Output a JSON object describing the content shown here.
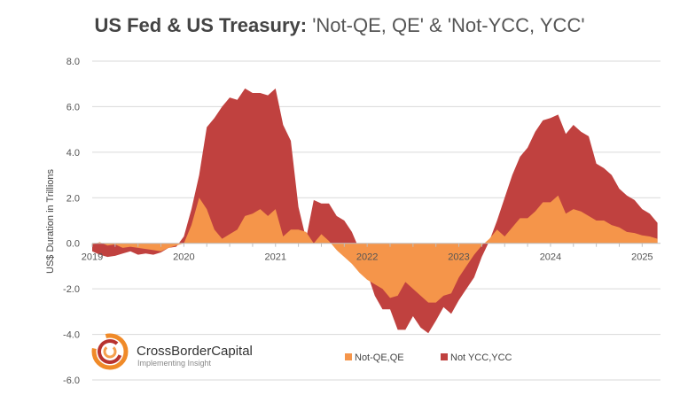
{
  "title": {
    "bold_part": "US Fed & US Treasury:",
    "light_part": " 'Not-QE, QE' & 'Not-YCC, YCC'"
  },
  "logo": {
    "name": "CrossBorderCapital",
    "tagline": "Implementing Insight"
  },
  "chart_data": {
    "type": "area",
    "title": "US Fed & US Treasury: 'Not-QE, QE' & 'Not-YCC, YCC'",
    "ylabel": "US$ Duration in Trillions",
    "xlabel": "",
    "ylim": [
      -6.0,
      8.0
    ],
    "y_ticks": [
      "8.0",
      "6.0",
      "4.0",
      "2.0",
      "0.0",
      "-2.0",
      "-4.0",
      "-6.0"
    ],
    "x_ticks": [
      "2019",
      "2020",
      "2021",
      "2022",
      "2023",
      "2024",
      "2025"
    ],
    "xlim": [
      2019.0,
      2025.2
    ],
    "grid": true,
    "legend_position": "bottom",
    "x": [
      2019.0,
      2019.083,
      2019.167,
      2019.25,
      2019.333,
      2019.417,
      2019.5,
      2019.583,
      2019.667,
      2019.75,
      2019.833,
      2019.917,
      2020.0,
      2020.083,
      2020.167,
      2020.25,
      2020.333,
      2020.417,
      2020.5,
      2020.583,
      2020.667,
      2020.75,
      2020.833,
      2020.917,
      2021.0,
      2021.083,
      2021.167,
      2021.25,
      2021.333,
      2021.417,
      2021.5,
      2021.583,
      2021.667,
      2021.75,
      2021.833,
      2021.917,
      2022.0,
      2022.083,
      2022.167,
      2022.25,
      2022.333,
      2022.417,
      2022.5,
      2022.583,
      2022.667,
      2022.75,
      2022.833,
      2022.917,
      2023.0,
      2023.083,
      2023.167,
      2023.25,
      2023.333,
      2023.417,
      2023.5,
      2023.583,
      2023.667,
      2023.75,
      2023.833,
      2023.917,
      2024.0,
      2024.083,
      2024.167,
      2024.25,
      2024.333,
      2024.417,
      2024.5,
      2024.583,
      2024.667,
      2024.75,
      2024.833,
      2024.917,
      2025.0,
      2025.083,
      2025.167
    ],
    "series": [
      {
        "name": "Not-QE,QE",
        "color": "#F5954A",
        "values": [
          -0.05,
          0.05,
          -0.1,
          -0.05,
          -0.2,
          -0.15,
          -0.2,
          -0.25,
          -0.3,
          -0.35,
          -0.2,
          -0.1,
          0.0,
          0.8,
          2.0,
          1.5,
          0.6,
          0.2,
          0.4,
          0.6,
          1.2,
          1.3,
          1.5,
          1.2,
          1.5,
          0.3,
          0.6,
          0.6,
          0.5,
          0.0,
          0.4,
          0.1,
          -0.3,
          -0.6,
          -0.9,
          -1.3,
          -1.6,
          -1.8,
          -2.0,
          -2.4,
          -2.3,
          -1.7,
          -2.0,
          -2.3,
          -2.6,
          -2.6,
          -2.3,
          -2.2,
          -1.5,
          -1.0,
          -0.5,
          -0.1,
          0.2,
          0.6,
          0.3,
          0.7,
          1.1,
          1.1,
          1.4,
          1.8,
          1.8,
          2.1,
          1.3,
          1.5,
          1.4,
          1.2,
          1.0,
          1.0,
          0.8,
          0.7,
          0.5,
          0.45,
          0.35,
          0.3,
          0.2
        ]
      },
      {
        "name": "Not YCC,YCC",
        "color": "#C0413F",
        "values": [
          -0.35,
          -0.5,
          -0.6,
          -0.55,
          -0.45,
          -0.35,
          -0.5,
          -0.45,
          -0.5,
          -0.4,
          -0.2,
          -0.15,
          0.3,
          1.5,
          3.0,
          5.1,
          5.5,
          6.0,
          6.4,
          6.3,
          6.8,
          6.6,
          6.6,
          6.5,
          6.8,
          5.2,
          4.5,
          1.6,
          0.2,
          1.9,
          1.75,
          1.75,
          1.2,
          1.0,
          0.5,
          -0.3,
          -1.3,
          -2.3,
          -2.9,
          -2.9,
          -3.8,
          -3.8,
          -3.2,
          -3.7,
          -3.95,
          -3.4,
          -2.8,
          -3.1,
          -2.5,
          -2.0,
          -1.5,
          -0.6,
          0.1,
          1.0,
          2.0,
          3.0,
          3.8,
          4.2,
          4.9,
          5.4,
          5.5,
          5.65,
          4.8,
          5.2,
          4.9,
          4.7,
          3.5,
          3.3,
          3.0,
          2.4,
          2.1,
          1.9,
          1.5,
          1.3,
          0.9
        ]
      }
    ]
  }
}
